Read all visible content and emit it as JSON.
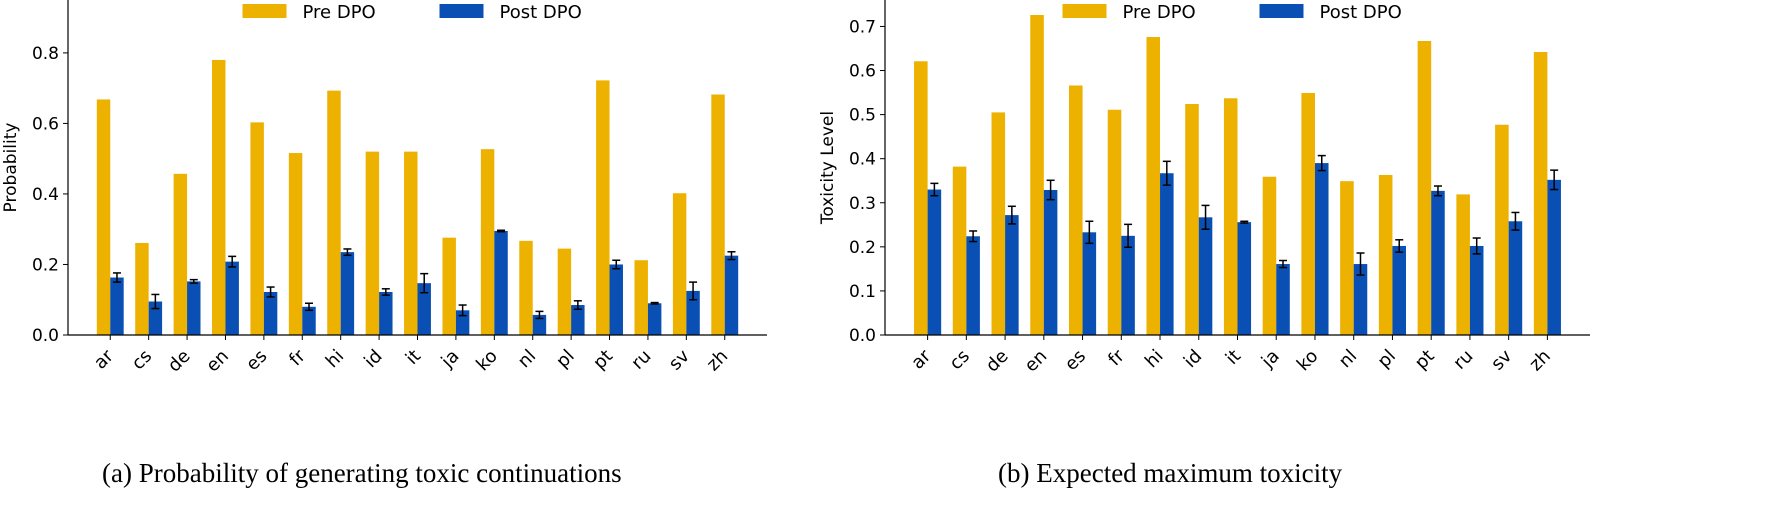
{
  "legend": {
    "pre": "Pre DPO",
    "post": "Post DPO"
  },
  "colors": {
    "pre": "#EDB100",
    "post": "#0A50B4"
  },
  "chart_data": [
    {
      "type": "bar",
      "caption": "(a) Probability of generating toxic continuations",
      "ylabel": "Probability",
      "ylim": [
        0,
        0.95
      ],
      "yticks": [
        "0.0",
        "0.2",
        "0.4",
        "0.6",
        "0.8"
      ],
      "legend_position": "top-center",
      "categories": [
        "ar",
        "cs",
        "de",
        "en",
        "es",
        "fr",
        "hi",
        "id",
        "it",
        "ja",
        "ko",
        "nl",
        "pl",
        "pt",
        "ru",
        "sv",
        "zh"
      ],
      "series": [
        {
          "name": "Pre DPO",
          "values": [
            0.668,
            0.261,
            0.457,
            0.78,
            0.603,
            0.516,
            0.693,
            0.52,
            0.52,
            0.276,
            0.527,
            0.267,
            0.245,
            0.722,
            0.212,
            0.402,
            0.682
          ]
        },
        {
          "name": "Post DPO",
          "values": [
            0.163,
            0.095,
            0.152,
            0.208,
            0.122,
            0.08,
            0.235,
            0.122,
            0.147,
            0.07,
            0.295,
            0.057,
            0.085,
            0.2,
            0.09,
            0.125,
            0.225
          ],
          "error": [
            0.013,
            0.02,
            0.005,
            0.015,
            0.014,
            0.01,
            0.009,
            0.009,
            0.027,
            0.015,
            0.002,
            0.01,
            0.012,
            0.012,
            0.002,
            0.025,
            0.011
          ]
        }
      ]
    },
    {
      "type": "bar",
      "caption": "(b) Expected maximum toxicity",
      "ylabel": "Toxicity Level",
      "ylim": [
        0,
        0.76
      ],
      "yticks": [
        "0.0",
        "0.1",
        "0.2",
        "0.3",
        "0.4",
        "0.5",
        "0.6",
        "0.7"
      ],
      "legend_position": "top-center",
      "categories": [
        "ar",
        "cs",
        "de",
        "en",
        "es",
        "fr",
        "hi",
        "id",
        "it",
        "ja",
        "ko",
        "nl",
        "pl",
        "pt",
        "ru",
        "sv",
        "zh"
      ],
      "series": [
        {
          "name": "Pre DPO",
          "values": [
            0.621,
            0.382,
            0.505,
            0.726,
            0.566,
            0.511,
            0.676,
            0.524,
            0.537,
            0.359,
            0.549,
            0.349,
            0.363,
            0.667,
            0.319,
            0.477,
            0.642
          ]
        },
        {
          "name": "Post DPO",
          "values": [
            0.33,
            0.224,
            0.272,
            0.329,
            0.233,
            0.225,
            0.367,
            0.267,
            0.256,
            0.161,
            0.39,
            0.161,
            0.202,
            0.327,
            0.202,
            0.258,
            0.352
          ],
          "error": [
            0.014,
            0.012,
            0.02,
            0.022,
            0.025,
            0.026,
            0.027,
            0.027,
            0.002,
            0.008,
            0.017,
            0.025,
            0.014,
            0.011,
            0.018,
            0.02,
            0.022
          ]
        }
      ]
    }
  ]
}
